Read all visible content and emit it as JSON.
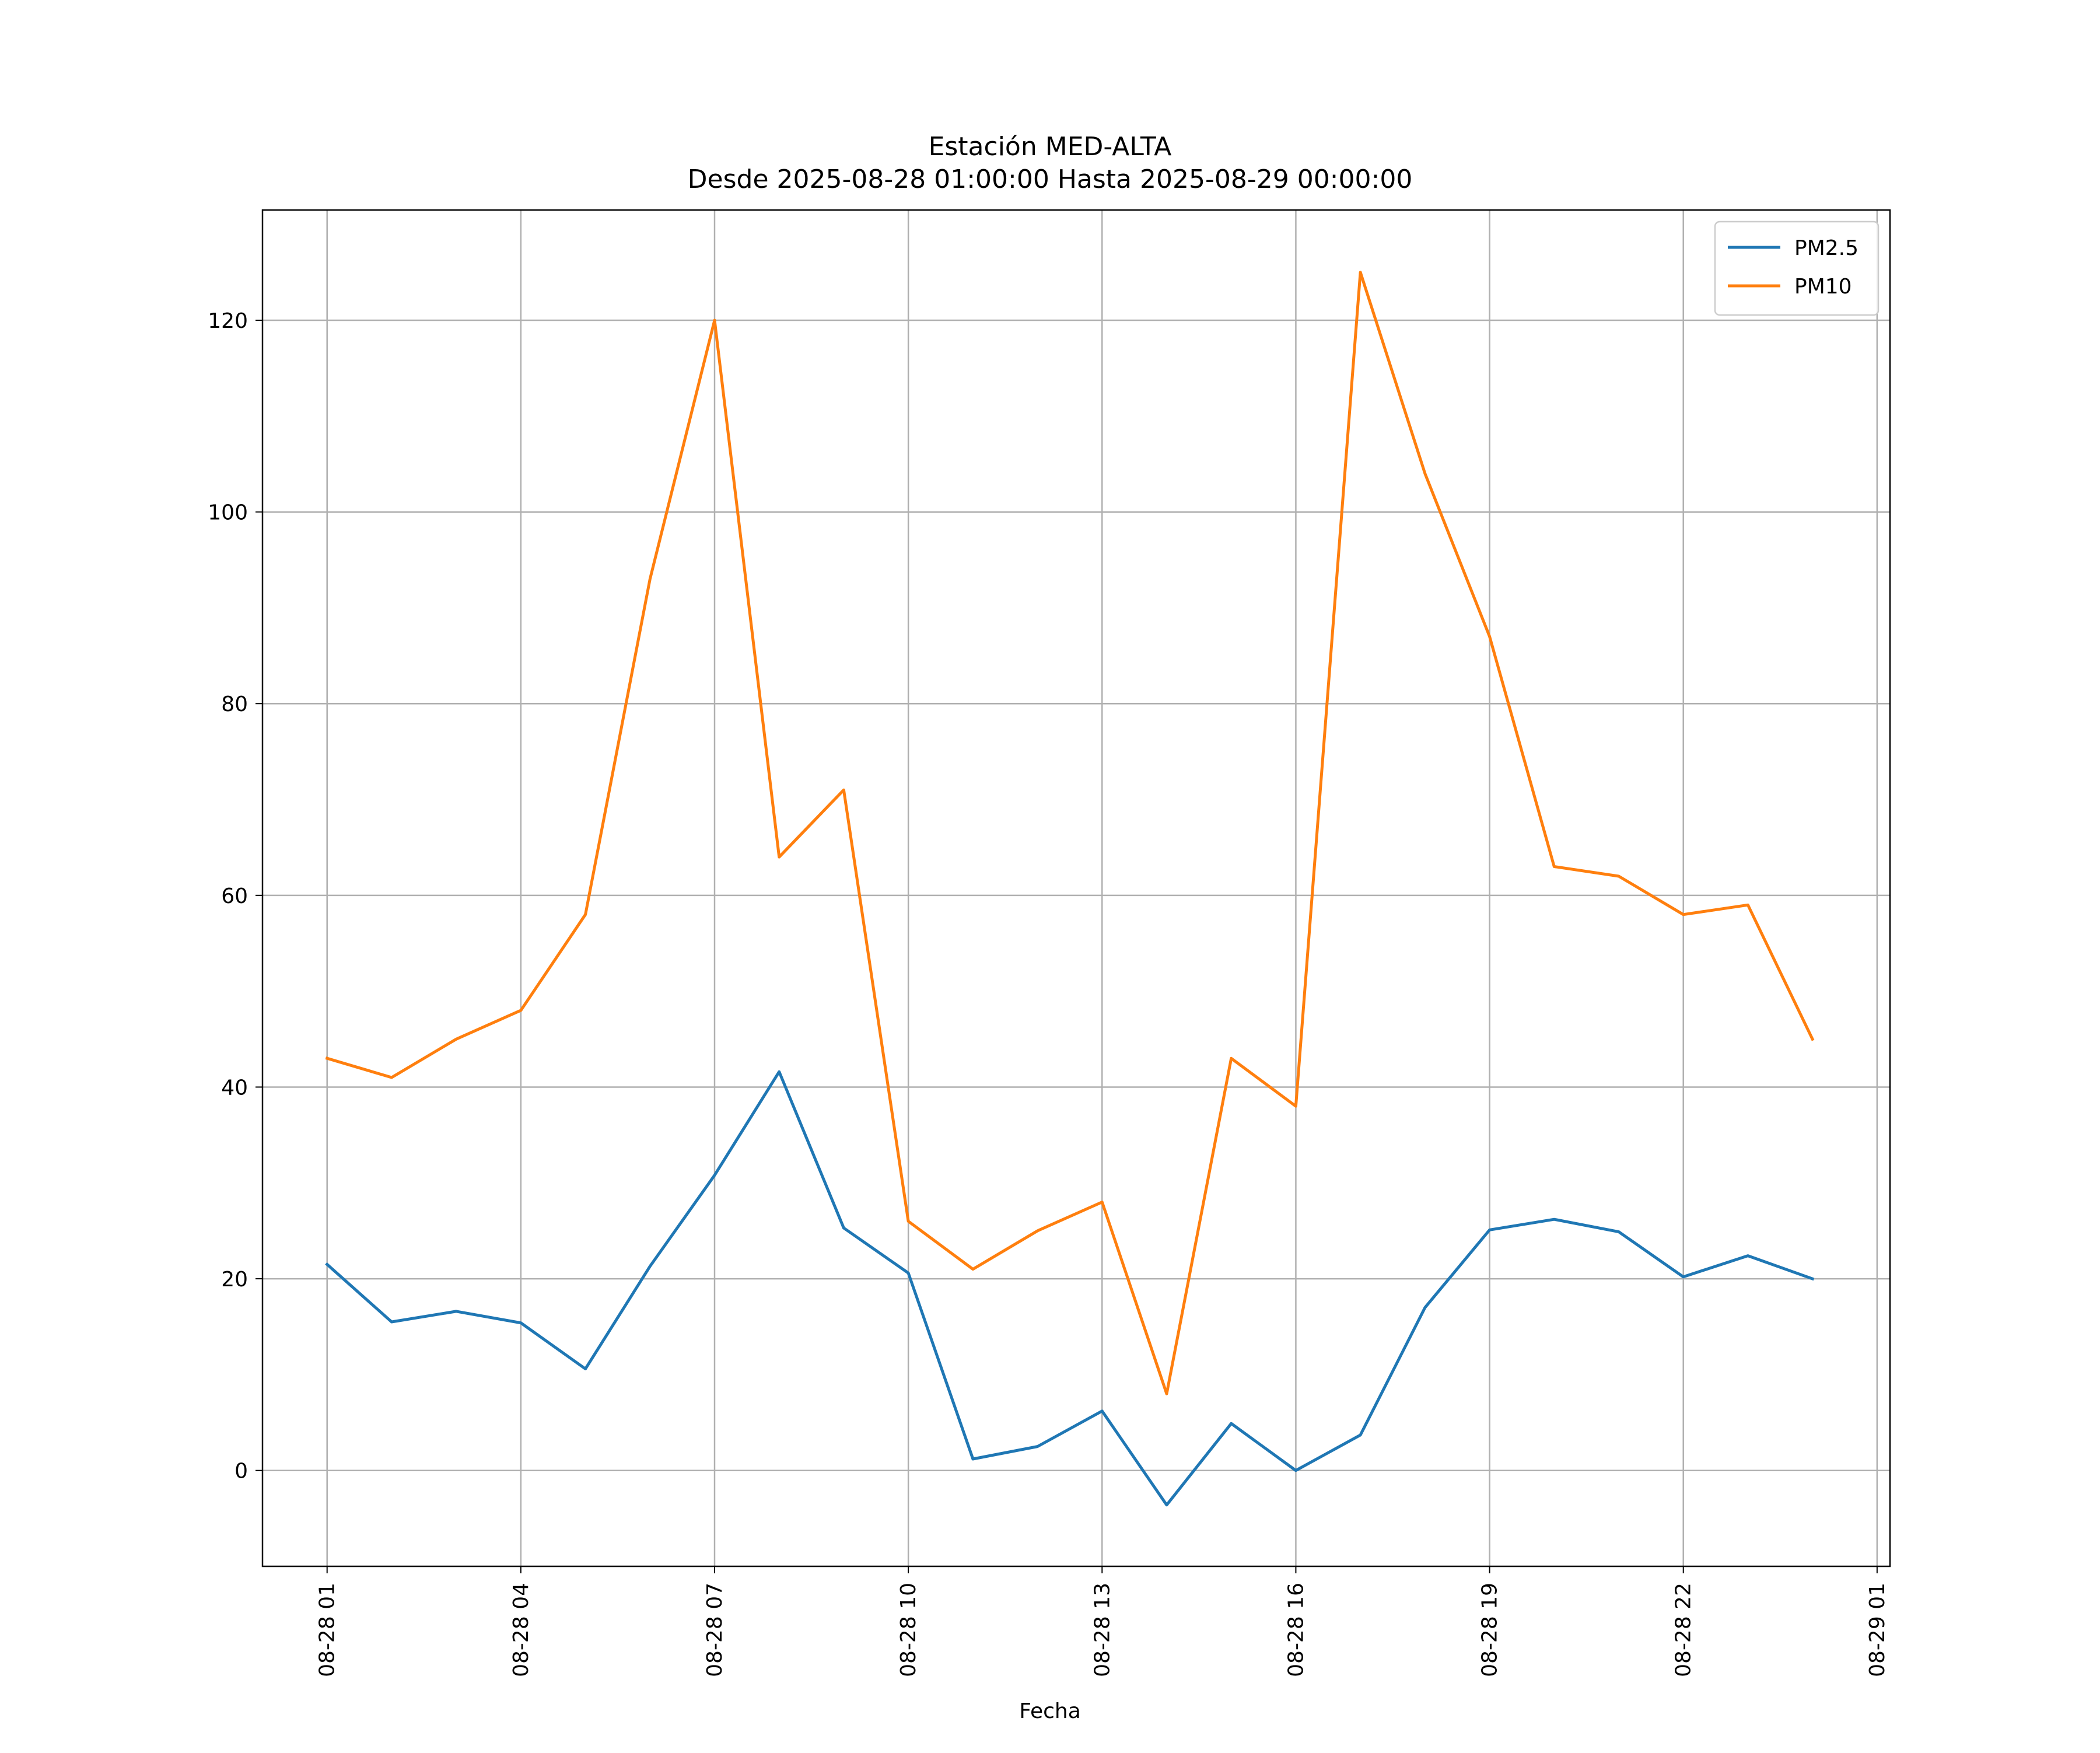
{
  "chart_data": {
    "type": "line",
    "title": "Estación MED-ALTA",
    "subtitle": "Desde 2025-08-28 01:00:00 Hasta 2025-08-29 00:00:00",
    "xlabel": "Fecha",
    "ylabel": "",
    "x": [
      "2025-08-28 01:00",
      "2025-08-28 02:00",
      "2025-08-28 03:00",
      "2025-08-28 04:00",
      "2025-08-28 05:00",
      "2025-08-28 06:00",
      "2025-08-28 07:00",
      "2025-08-28 08:00",
      "2025-08-28 09:00",
      "2025-08-28 10:00",
      "2025-08-28 11:00",
      "2025-08-28 12:00",
      "2025-08-28 13:00",
      "2025-08-28 14:00",
      "2025-08-28 15:00",
      "2025-08-28 16:00",
      "2025-08-28 17:00",
      "2025-08-28 18:00",
      "2025-08-28 19:00",
      "2025-08-28 20:00",
      "2025-08-28 21:00",
      "2025-08-28 22:00",
      "2025-08-28 23:00",
      "2025-08-29 00:00"
    ],
    "xlim": [
      "2025-08-28 00:00",
      "2025-08-29 01:12"
    ],
    "x_ticks": [
      {
        "at": "2025-08-28 01:00",
        "label": "08-28 01"
      },
      {
        "at": "2025-08-28 04:00",
        "label": "08-28 04"
      },
      {
        "at": "2025-08-28 07:00",
        "label": "08-28 07"
      },
      {
        "at": "2025-08-28 10:00",
        "label": "08-28 10"
      },
      {
        "at": "2025-08-28 13:00",
        "label": "08-28 13"
      },
      {
        "at": "2025-08-28 16:00",
        "label": "08-28 16"
      },
      {
        "at": "2025-08-28 19:00",
        "label": "08-28 19"
      },
      {
        "at": "2025-08-28 22:00",
        "label": "08-28 22"
      },
      {
        "at": "2025-08-29 01:00",
        "label": "08-29 01"
      }
    ],
    "ylim": [
      -10,
      131.5
    ],
    "y_ticks": [
      0,
      20,
      40,
      60,
      80,
      100,
      120
    ],
    "grid": true,
    "legend_position": "top-right",
    "series": [
      {
        "name": "PM2.5",
        "color": "#1f77b4",
        "values": [
          21.5,
          15.5,
          16.6,
          15.4,
          10.6,
          21.3,
          30.8,
          41.6,
          25.3,
          20.6,
          1.2,
          2.5,
          6.2,
          -3.6,
          4.9,
          0.0,
          3.7,
          17.0,
          25.1,
          26.2,
          24.9,
          20.2,
          22.4,
          20.0
        ]
      },
      {
        "name": "PM10",
        "color": "#ff7f0e",
        "values": [
          43,
          41,
          45,
          48,
          58,
          93,
          120,
          64,
          71,
          26,
          21,
          25,
          28,
          8,
          43,
          38,
          125,
          104,
          87,
          63,
          62,
          58,
          59,
          45
        ]
      }
    ]
  }
}
